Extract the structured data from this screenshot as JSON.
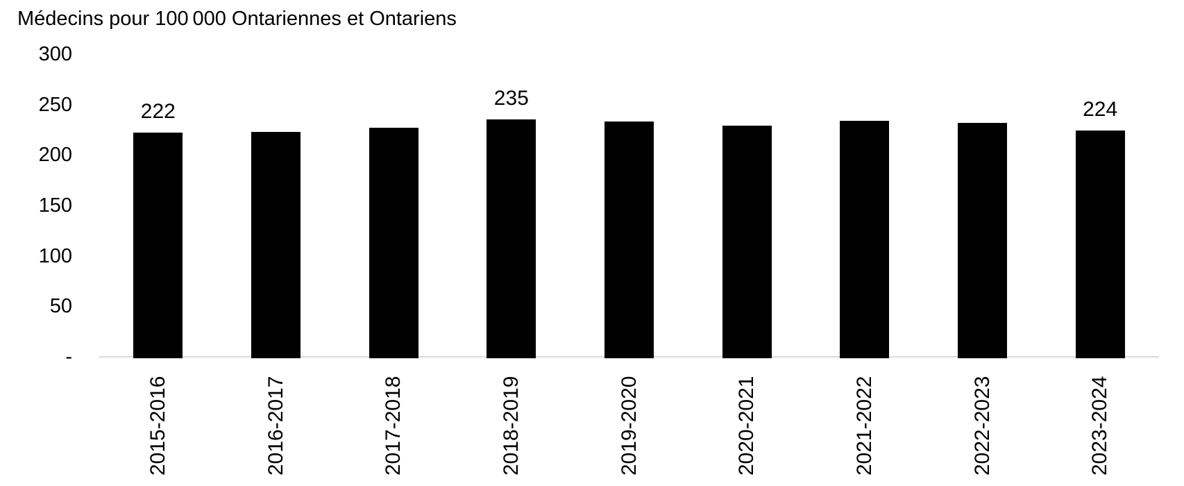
{
  "chart_data": {
    "type": "bar",
    "title": "Médecins pour 100 000 Ontariennes et Ontariens",
    "categories": [
      "2015-2016",
      "2016-2017",
      "2017-2018",
      "2018-2019",
      "2019-2020",
      "2020-2021",
      "2021-2022",
      "2022-2023",
      "2023-2024"
    ],
    "values": [
      222,
      223,
      227,
      235,
      233,
      229,
      234,
      232,
      224
    ],
    "value_labels_shown": {
      "0": "222",
      "3": "235",
      "8": "224"
    },
    "y_ticks": [
      {
        "label": "300",
        "value": 300
      },
      {
        "label": "250",
        "value": 250
      },
      {
        "label": "200",
        "value": 200
      },
      {
        "label": "150",
        "value": 150
      },
      {
        "label": "100",
        "value": 100
      },
      {
        "label": "50",
        "value": 50
      },
      {
        "label": "-",
        "value": 0
      }
    ],
    "ylim": [
      0,
      300
    ],
    "xlabel": "",
    "ylabel": "",
    "legend": "none",
    "grid": "off",
    "bar_color": "#000000",
    "axis_line_color": "#d9d9d9",
    "text_color": "#000000",
    "background_color": "#ffffff"
  }
}
